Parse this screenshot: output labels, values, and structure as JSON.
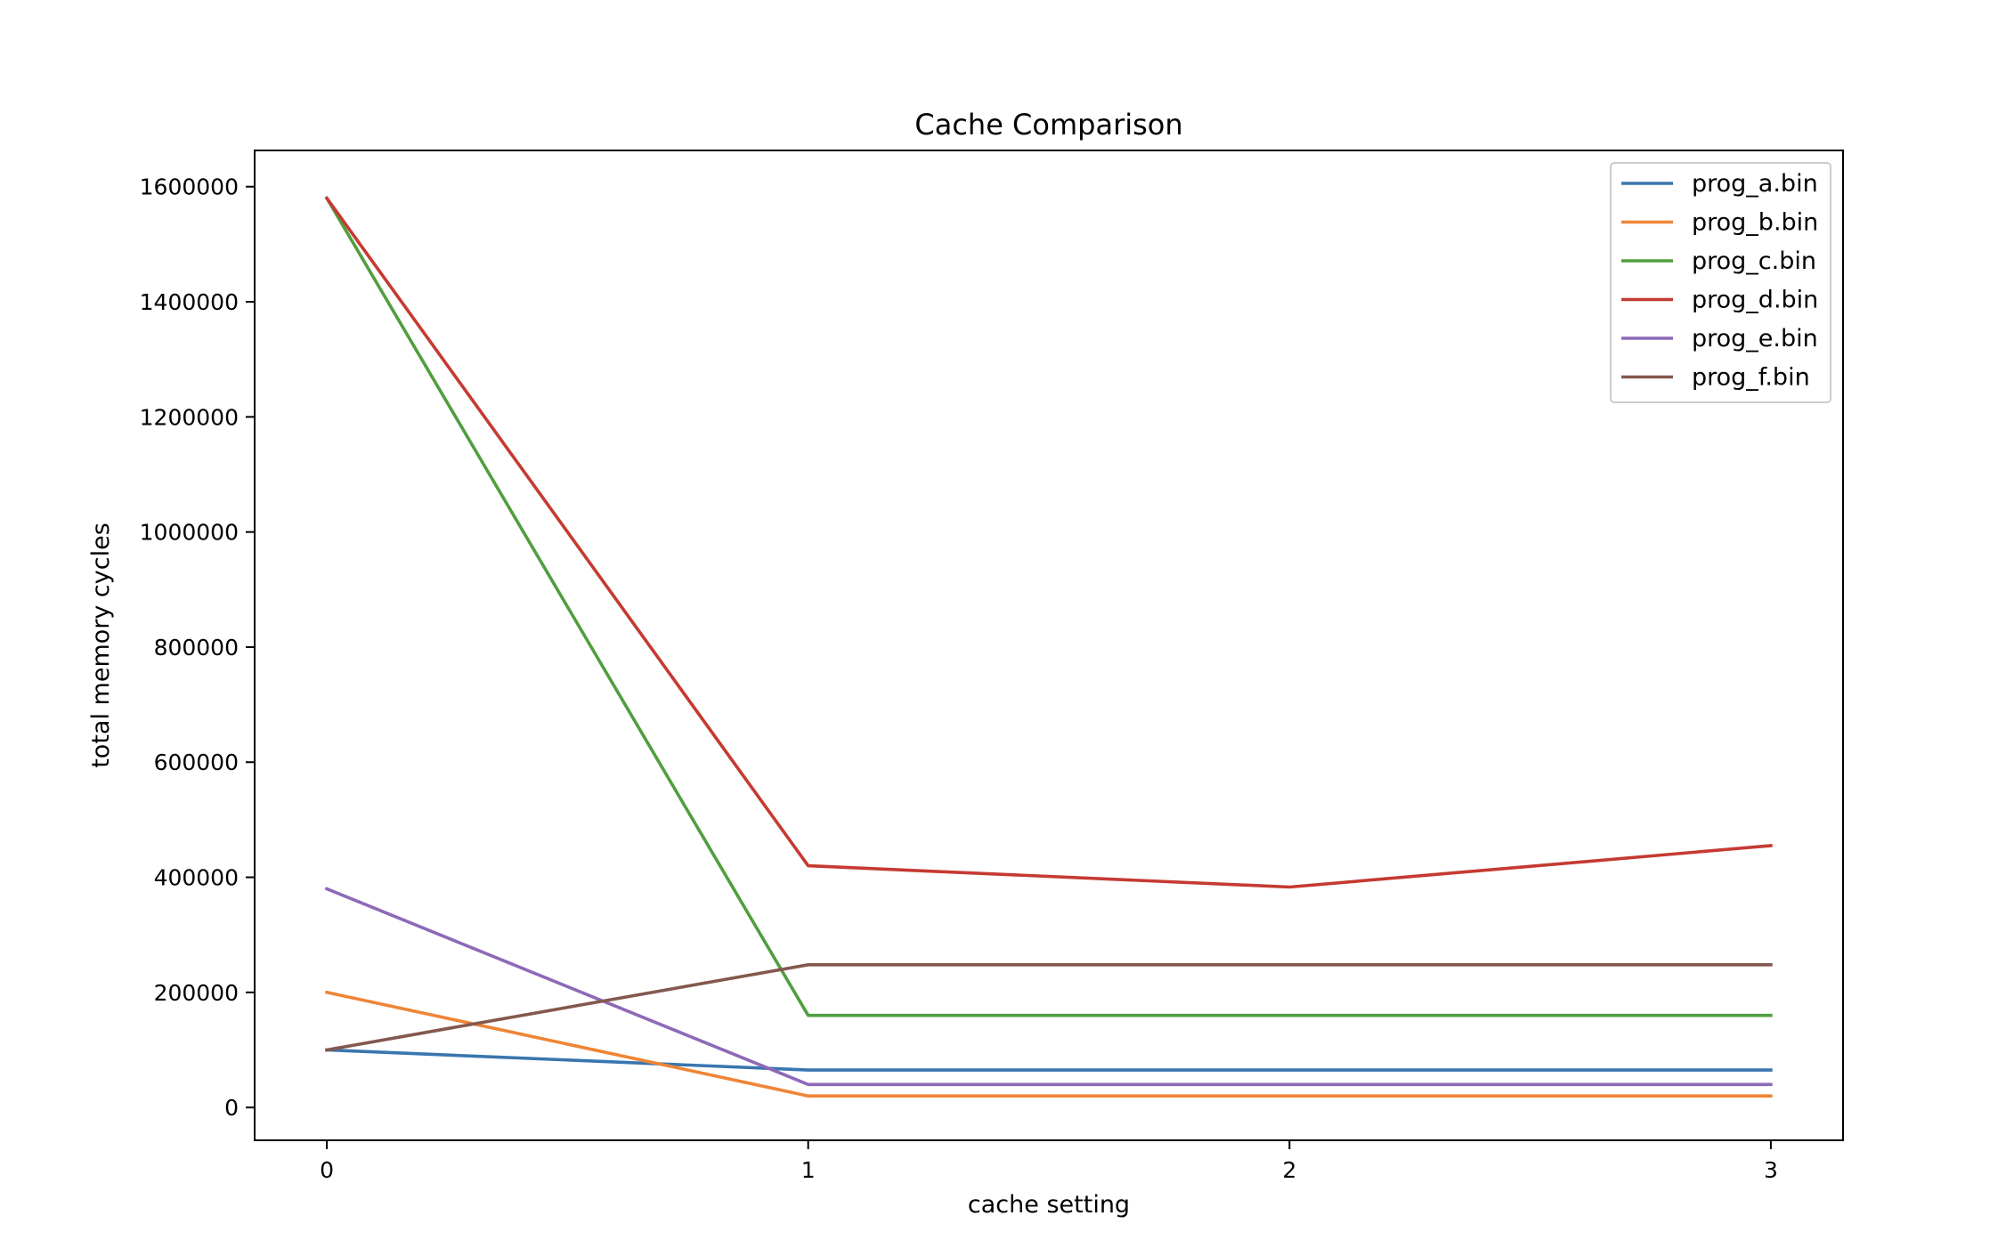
{
  "chart_data": {
    "type": "line",
    "title": "Cache Comparison",
    "xlabel": "cache setting",
    "ylabel": "total memory cycles",
    "x": [
      0,
      1,
      2,
      3
    ],
    "x_ticks": [
      "0",
      "1",
      "2",
      "3"
    ],
    "y_ticks": [
      "0",
      "200000",
      "400000",
      "600000",
      "800000",
      "1000000",
      "1200000",
      "1400000",
      "1600000"
    ],
    "xlim": [
      -0.15,
      3.15
    ],
    "ylim": [
      -57000,
      1663000
    ],
    "grid": false,
    "legend_position": "top-right",
    "series": [
      {
        "name": "prog_a.bin",
        "color": "#3a75af",
        "values": [
          100000,
          65000,
          65000,
          65000
        ]
      },
      {
        "name": "prog_b.bin",
        "color": "#ef8536",
        "values": [
          200000,
          20000,
          20000,
          20000
        ]
      },
      {
        "name": "prog_c.bin",
        "color": "#519e3e",
        "values": [
          1580000,
          160000,
          160000,
          160000
        ]
      },
      {
        "name": "prog_d.bin",
        "color": "#c53a32",
        "values": [
          1580000,
          420000,
          383000,
          455000
        ]
      },
      {
        "name": "prog_e.bin",
        "color": "#8d69b8",
        "values": [
          380000,
          40000,
          40000,
          40000
        ]
      },
      {
        "name": "prog_f.bin",
        "color": "#84584e",
        "values": [
          100000,
          248000,
          248000,
          248000
        ]
      }
    ]
  }
}
